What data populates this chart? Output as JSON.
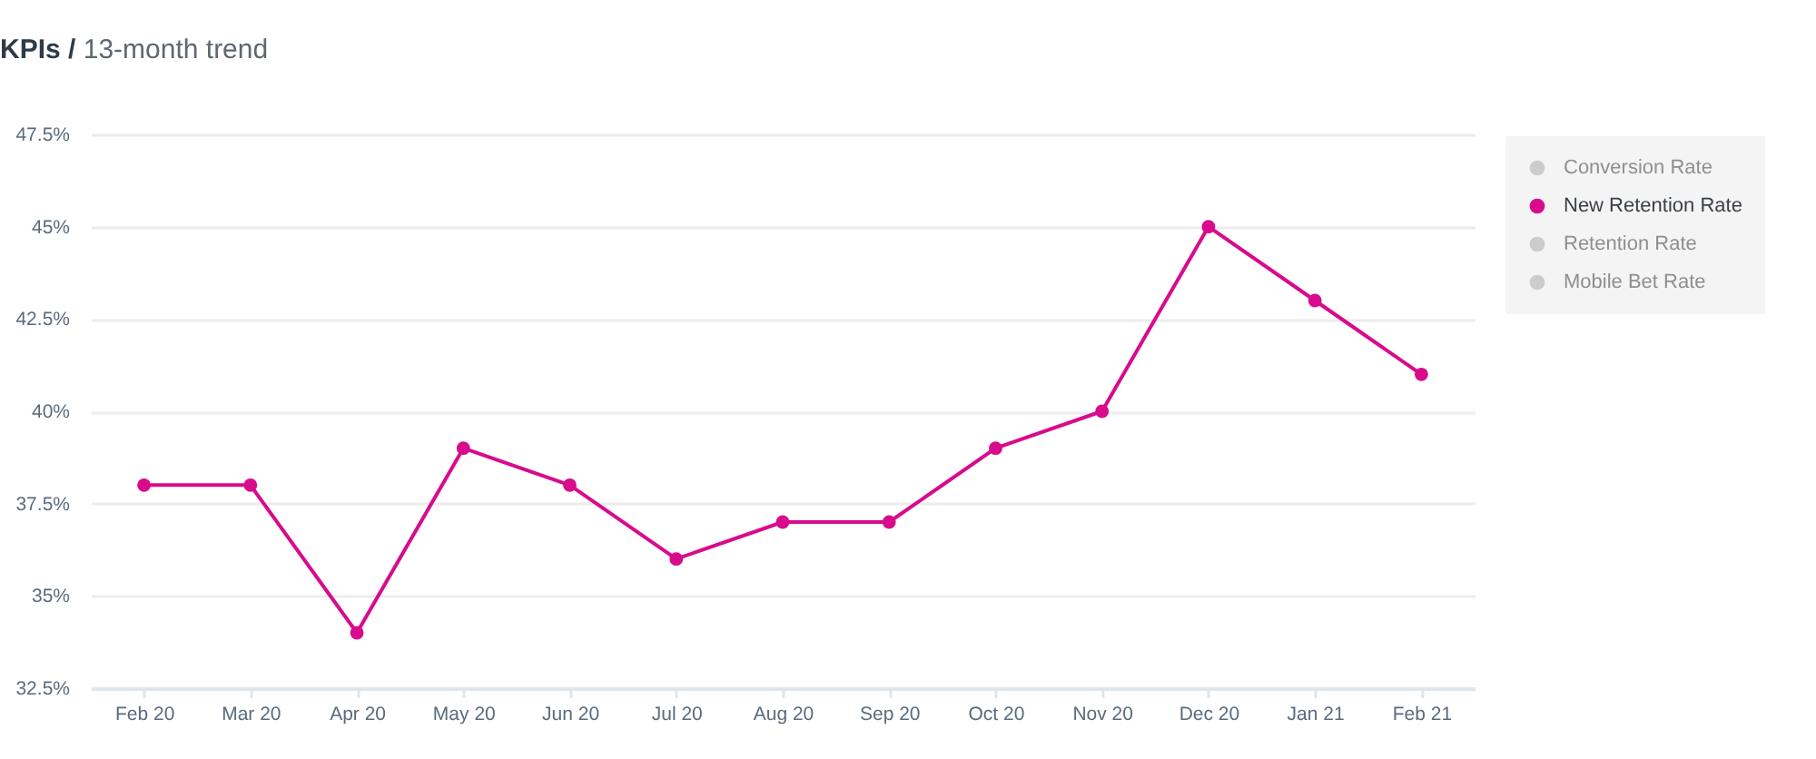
{
  "chart_data": {
    "type": "line",
    "title": "KPIs /",
    "subtitle": "13-month trend",
    "categories": [
      "Feb 20",
      "Mar 20",
      "Apr 20",
      "May 20",
      "Jun 20",
      "Jul 20",
      "Aug 20",
      "Sep 20",
      "Oct 20",
      "Nov 20",
      "Dec 20",
      "Jan 21",
      "Feb 21"
    ],
    "series": [
      {
        "name": "Conversion Rate",
        "color": "#cccccc",
        "values": [
          null,
          null,
          null,
          null,
          null,
          null,
          null,
          null,
          null,
          null,
          null,
          null,
          null
        ]
      },
      {
        "name": "New Retention Rate",
        "color": "#d80b8c",
        "values": [
          38,
          38,
          34,
          39,
          38,
          36,
          37,
          37,
          39,
          40,
          45,
          43,
          41
        ]
      },
      {
        "name": "Retention Rate",
        "color": "#cccccc",
        "values": [
          null,
          null,
          null,
          null,
          null,
          null,
          null,
          null,
          null,
          null,
          null,
          null,
          null
        ]
      },
      {
        "name": "Mobile Bet Rate",
        "color": "#cccccc",
        "values": [
          null,
          null,
          null,
          null,
          null,
          null,
          null,
          null,
          null,
          null,
          null,
          null,
          null
        ]
      }
    ],
    "ylim": [
      32.5,
      47.5
    ],
    "yticks": [
      {
        "value": 32.5,
        "label": "32.5%"
      },
      {
        "value": 35,
        "label": "35%"
      },
      {
        "value": 37.5,
        "label": "37.5%"
      },
      {
        "value": 40,
        "label": "40%"
      },
      {
        "value": 42.5,
        "label": "42.5%"
      },
      {
        "value": 45,
        "label": "45%"
      },
      {
        "value": 47.5,
        "label": "47.5%"
      }
    ],
    "grid": "y",
    "legend": "top right",
    "marker": "circle",
    "line_style": "solid"
  }
}
